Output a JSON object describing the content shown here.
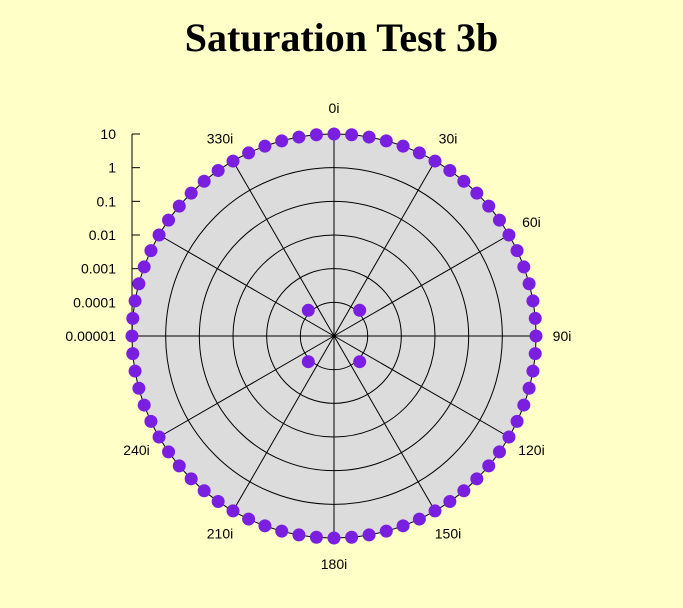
{
  "chart_data": {
    "type": "scatter",
    "subtype": "polar",
    "title": "Saturation Test 3b",
    "radial_axis": {
      "scale": "log",
      "range": [
        1e-05,
        10
      ],
      "tick_labels": [
        "10",
        "1",
        "0.1",
        "0.01",
        "0.001",
        "0.0001",
        "0.00001"
      ],
      "tick_values": [
        10,
        1,
        0.1,
        0.01,
        0.001,
        0.0001,
        1e-05
      ]
    },
    "angular_axis": {
      "direction": "clockwise",
      "zero": "top",
      "tick_values": [
        0,
        30,
        60,
        90,
        120,
        150,
        180,
        210,
        240,
        270,
        300,
        330
      ],
      "tick_labels": [
        "0i",
        "30i",
        "60i",
        "90i",
        "120i",
        "150i",
        "180i",
        "210i",
        "240i",
        "",
        "",
        "330i"
      ]
    },
    "grid": true,
    "colors": {
      "background": "#ffffc8",
      "plot_area": "#dcdcdc",
      "marker": "#7a1fe0",
      "grid": "#000000"
    },
    "series": [
      {
        "marker": "circle",
        "points": [
          {
            "angle": 0,
            "r": 10
          },
          {
            "angle": 5,
            "r": 10
          },
          {
            "angle": 10,
            "r": 10
          },
          {
            "angle": 15,
            "r": 10
          },
          {
            "angle": 20,
            "r": 10
          },
          {
            "angle": 25,
            "r": 10
          },
          {
            "angle": 30,
            "r": 10
          },
          {
            "angle": 35,
            "r": 10
          },
          {
            "angle": 40,
            "r": 10
          },
          {
            "angle": 45,
            "r": 10
          },
          {
            "angle": 50,
            "r": 10
          },
          {
            "angle": 55,
            "r": 10
          },
          {
            "angle": 60,
            "r": 10
          },
          {
            "angle": 65,
            "r": 10
          },
          {
            "angle": 70,
            "r": 10
          },
          {
            "angle": 75,
            "r": 10
          },
          {
            "angle": 80,
            "r": 10
          },
          {
            "angle": 85,
            "r": 10
          },
          {
            "angle": 90,
            "r": 10
          },
          {
            "angle": 95,
            "r": 10
          },
          {
            "angle": 100,
            "r": 10
          },
          {
            "angle": 105,
            "r": 10
          },
          {
            "angle": 110,
            "r": 10
          },
          {
            "angle": 115,
            "r": 10
          },
          {
            "angle": 120,
            "r": 10
          },
          {
            "angle": 125,
            "r": 10
          },
          {
            "angle": 130,
            "r": 10
          },
          {
            "angle": 135,
            "r": 10
          },
          {
            "angle": 140,
            "r": 10
          },
          {
            "angle": 145,
            "r": 10
          },
          {
            "angle": 150,
            "r": 10
          },
          {
            "angle": 155,
            "r": 10
          },
          {
            "angle": 160,
            "r": 10
          },
          {
            "angle": 165,
            "r": 10
          },
          {
            "angle": 170,
            "r": 10
          },
          {
            "angle": 175,
            "r": 10
          },
          {
            "angle": 180,
            "r": 10
          },
          {
            "angle": 185,
            "r": 10
          },
          {
            "angle": 190,
            "r": 10
          },
          {
            "angle": 195,
            "r": 10
          },
          {
            "angle": 200,
            "r": 10
          },
          {
            "angle": 205,
            "r": 10
          },
          {
            "angle": 210,
            "r": 10
          },
          {
            "angle": 215,
            "r": 10
          },
          {
            "angle": 220,
            "r": 10
          },
          {
            "angle": 225,
            "r": 10
          },
          {
            "angle": 230,
            "r": 10
          },
          {
            "angle": 235,
            "r": 10
          },
          {
            "angle": 240,
            "r": 10
          },
          {
            "angle": 245,
            "r": 10
          },
          {
            "angle": 250,
            "r": 10
          },
          {
            "angle": 255,
            "r": 10
          },
          {
            "angle": 260,
            "r": 10
          },
          {
            "angle": 265,
            "r": 10
          },
          {
            "angle": 270,
            "r": 10
          },
          {
            "angle": 275,
            "r": 10
          },
          {
            "angle": 280,
            "r": 10
          },
          {
            "angle": 285,
            "r": 10
          },
          {
            "angle": 290,
            "r": 10
          },
          {
            "angle": 295,
            "r": 10
          },
          {
            "angle": 300,
            "r": 10
          },
          {
            "angle": 305,
            "r": 10
          },
          {
            "angle": 310,
            "r": 10
          },
          {
            "angle": 315,
            "r": 10
          },
          {
            "angle": 320,
            "r": 10
          },
          {
            "angle": 325,
            "r": 10
          },
          {
            "angle": 330,
            "r": 10
          },
          {
            "angle": 335,
            "r": 10
          },
          {
            "angle": 340,
            "r": 10
          },
          {
            "angle": 345,
            "r": 10
          },
          {
            "angle": 350,
            "r": 10
          },
          {
            "angle": 355,
            "r": 10
          },
          {
            "angle": 45,
            "r": 0.00012
          },
          {
            "angle": 135,
            "r": 0.00012
          },
          {
            "angle": 225,
            "r": 0.00012
          },
          {
            "angle": 315,
            "r": 0.00012
          }
        ]
      }
    ]
  }
}
